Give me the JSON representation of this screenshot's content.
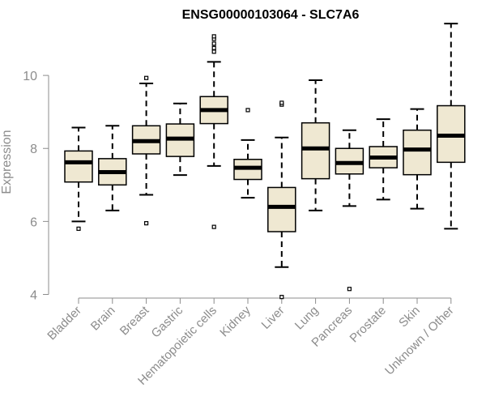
{
  "chart_data": {
    "type": "boxplot",
    "title": "ENSG00000103064 - SLC7A6",
    "xlabel": "",
    "ylabel": "Expression",
    "ylim": [
      3.9,
      11.6
    ],
    "yticks": [
      4,
      6,
      8,
      10
    ],
    "grid": false,
    "colors": {
      "box_fill": "#efe8d2",
      "stroke": "#000000",
      "axis": "#8c8c8c"
    },
    "categories": [
      "Bladder",
      "Brain",
      "Breast",
      "Gastric",
      "Hematopoietic cells",
      "Kidney",
      "Liver",
      "Lung",
      "Pancreas",
      "Prostate",
      "Skin",
      "Unknown / Other"
    ],
    "boxes": [
      {
        "name": "Bladder",
        "whisker_low": 6.0,
        "q1": 7.08,
        "median": 7.62,
        "q3": 7.93,
        "whisker_high": 8.57,
        "outliers": [
          5.8
        ]
      },
      {
        "name": "Brain",
        "whisker_low": 6.3,
        "q1": 7.0,
        "median": 7.35,
        "q3": 7.72,
        "whisker_high": 8.62,
        "outliers": []
      },
      {
        "name": "Breast",
        "whisker_low": 6.73,
        "q1": 7.85,
        "median": 8.2,
        "q3": 8.62,
        "whisker_high": 9.78,
        "outliers": [
          5.95,
          9.93
        ]
      },
      {
        "name": "Gastric",
        "whisker_low": 7.27,
        "q1": 7.78,
        "median": 8.27,
        "q3": 8.67,
        "whisker_high": 9.23,
        "outliers": []
      },
      {
        "name": "Hematopoietic cells",
        "whisker_low": 7.52,
        "q1": 8.68,
        "median": 9.05,
        "q3": 9.42,
        "whisker_high": 10.37,
        "outliers": [
          5.85,
          10.65,
          10.75,
          10.87,
          11.0,
          11.07
        ]
      },
      {
        "name": "Kidney",
        "whisker_low": 6.65,
        "q1": 7.15,
        "median": 7.47,
        "q3": 7.7,
        "whisker_high": 8.23,
        "outliers": [
          9.05
        ]
      },
      {
        "name": "Liver",
        "whisker_low": 4.75,
        "q1": 5.72,
        "median": 6.4,
        "q3": 6.93,
        "whisker_high": 8.3,
        "outliers": [
          3.93,
          9.2,
          9.25
        ]
      },
      {
        "name": "Lung",
        "whisker_low": 6.3,
        "q1": 7.17,
        "median": 8.0,
        "q3": 8.7,
        "whisker_high": 9.87,
        "outliers": []
      },
      {
        "name": "Pancreas",
        "whisker_low": 6.42,
        "q1": 7.3,
        "median": 7.6,
        "q3": 8.0,
        "whisker_high": 8.5,
        "outliers": [
          4.15
        ]
      },
      {
        "name": "Prostate",
        "whisker_low": 6.6,
        "q1": 7.47,
        "median": 7.75,
        "q3": 8.05,
        "whisker_high": 8.8,
        "outliers": []
      },
      {
        "name": "Skin",
        "whisker_low": 6.35,
        "q1": 7.28,
        "median": 7.97,
        "q3": 8.5,
        "whisker_high": 9.08,
        "outliers": []
      },
      {
        "name": "Unknown / Other",
        "whisker_low": 5.8,
        "q1": 7.62,
        "median": 8.35,
        "q3": 9.17,
        "whisker_high": 11.42,
        "outliers": []
      }
    ]
  }
}
